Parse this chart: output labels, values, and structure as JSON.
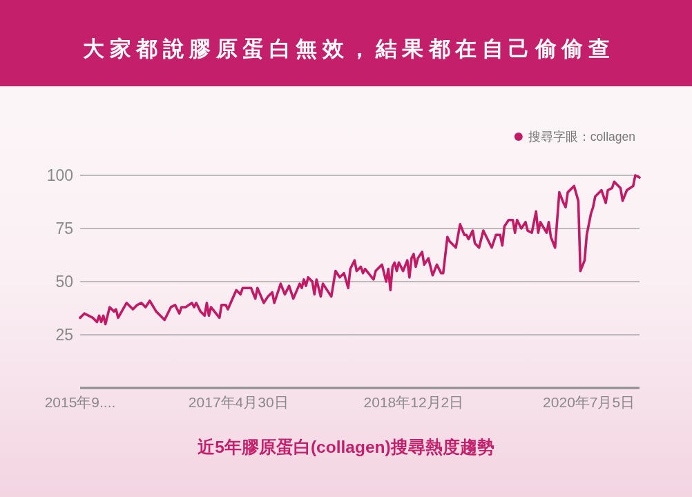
{
  "chart_data": {
    "type": "line",
    "title": "大家都說膠原蛋白無效，結果都在自己偷偷查",
    "subtitle": "近5年膠原蛋白(collagen)搜尋熱度趨勢",
    "xlim": [
      "2015-11-22",
      "2020-12-20"
    ],
    "xticks": [
      {
        "value": "2015-11-22",
        "label": "2015年9...."
      },
      {
        "value": "2017-04-30",
        "label": "2017年4月30日"
      },
      {
        "value": "2018-12-02",
        "label": "2018年12月2日"
      },
      {
        "value": "2020-07-05",
        "label": "2020年7月5日"
      }
    ],
    "ylim": [
      0,
      100
    ],
    "yticks": [
      25,
      50,
      75,
      100
    ],
    "grid": "y",
    "legend": "top right",
    "series": [
      {
        "name": "搜尋字眼：collagen",
        "color": "#c11b66",
        "x": [
          "2015-11-22",
          "2015-12-06",
          "2016-01-03",
          "2016-01-17",
          "2016-01-24",
          "2016-01-31",
          "2016-02-07",
          "2016-02-14",
          "2016-02-28",
          "2016-03-13",
          "2016-03-20",
          "2016-03-27",
          "2016-04-24",
          "2016-05-15",
          "2016-05-29",
          "2016-06-12",
          "2016-06-26",
          "2016-07-10",
          "2016-07-31",
          "2016-08-14",
          "2016-08-28",
          "2016-09-18",
          "2016-10-02",
          "2016-10-16",
          "2016-10-23",
          "2016-11-06",
          "2016-11-27",
          "2016-12-04",
          "2016-12-11",
          "2016-12-25",
          "2017-01-08",
          "2017-01-15",
          "2017-01-22",
          "2017-01-29",
          "2017-02-26",
          "2017-03-05",
          "2017-03-19",
          "2017-03-26",
          "2017-04-23",
          "2017-05-07",
          "2017-05-14",
          "2017-05-28",
          "2017-06-11",
          "2017-06-25",
          "2017-07-02",
          "2017-07-23",
          "2017-08-06",
          "2017-08-20",
          "2017-08-27",
          "2017-09-03",
          "2017-09-17",
          "2017-10-01",
          "2017-10-15",
          "2017-10-29",
          "2017-11-19",
          "2017-11-26",
          "2017-12-03",
          "2017-12-10",
          "2017-12-17",
          "2017-12-31",
          "2018-01-07",
          "2018-01-14",
          "2018-01-28",
          "2018-02-04",
          "2018-03-04",
          "2018-03-18",
          "2018-04-01",
          "2018-04-15",
          "2018-04-29",
          "2018-05-06",
          "2018-05-20",
          "2018-05-27",
          "2018-06-10",
          "2018-06-17",
          "2018-06-24",
          "2018-07-22",
          "2018-07-29",
          "2018-08-19",
          "2018-09-02",
          "2018-09-09",
          "2018-09-16",
          "2018-09-23",
          "2018-09-30",
          "2018-10-07",
          "2018-10-14",
          "2018-10-28",
          "2018-11-11",
          "2018-11-18",
          "2018-11-25",
          "2018-12-02",
          "2018-12-09",
          "2018-12-16",
          "2018-12-30",
          "2019-01-06",
          "2019-01-20",
          "2019-02-03",
          "2019-02-17",
          "2019-03-03",
          "2019-03-10",
          "2019-03-24",
          "2019-03-31",
          "2019-04-21",
          "2019-05-05",
          "2019-05-19",
          "2019-05-26",
          "2019-06-02",
          "2019-06-16",
          "2019-06-23",
          "2019-07-07",
          "2019-07-21",
          "2019-07-28",
          "2019-08-18",
          "2019-09-01",
          "2019-09-15",
          "2019-09-22",
          "2019-09-29",
          "2019-10-13",
          "2019-10-27",
          "2019-11-03",
          "2019-11-10",
          "2019-11-24",
          "2019-12-08",
          "2019-12-15",
          "2019-12-29",
          "2020-01-12",
          "2020-01-19",
          "2020-01-26",
          "2020-02-16",
          "2020-02-23",
          "2020-03-01",
          "2020-03-15",
          "2020-03-29",
          "2020-04-12",
          "2020-04-19",
          "2020-04-26",
          "2020-05-17",
          "2020-05-31",
          "2020-06-07",
          "2020-06-21",
          "2020-06-28",
          "2020-07-12",
          "2020-07-19",
          "2020-07-26",
          "2020-08-16",
          "2020-08-30",
          "2020-09-06",
          "2020-09-20",
          "2020-09-27",
          "2020-10-18",
          "2020-10-25",
          "2020-11-08",
          "2020-11-29",
          "2020-12-06",
          "2020-12-20"
        ],
        "values": [
          33,
          35,
          33,
          31,
          34,
          31,
          34,
          30,
          38,
          36,
          37,
          33,
          40,
          37,
          39,
          40,
          38,
          41,
          36,
          34,
          32,
          38,
          39,
          35,
          38,
          38,
          40,
          38,
          40,
          36,
          34,
          40,
          34,
          38,
          33,
          39,
          39,
          37,
          46,
          44,
          47,
          47,
          47,
          42,
          47,
          40,
          43,
          45,
          40,
          43,
          49,
          44,
          48,
          42,
          49,
          47,
          51,
          48,
          52,
          50,
          44,
          51,
          43,
          49,
          43,
          55,
          52,
          54,
          47,
          56,
          60,
          55,
          57,
          54,
          56,
          51,
          55,
          58,
          50,
          56,
          46,
          57,
          59,
          55,
          59,
          55,
          60,
          52,
          61,
          63,
          57,
          61,
          64,
          58,
          61,
          53,
          58,
          54,
          54,
          71,
          69,
          66,
          77,
          72,
          72,
          70,
          74,
          68,
          66,
          74,
          72,
          66,
          72,
          72,
          67,
          76,
          79,
          79,
          73,
          79,
          75,
          78,
          74,
          73,
          83,
          73,
          78,
          73,
          78,
          71,
          66,
          92,
          87,
          85,
          92,
          95,
          88,
          55,
          60,
          72,
          82,
          85,
          90,
          93,
          87,
          93,
          94,
          97,
          94,
          88,
          93,
          95,
          100,
          99
        ]
      }
    ]
  }
}
